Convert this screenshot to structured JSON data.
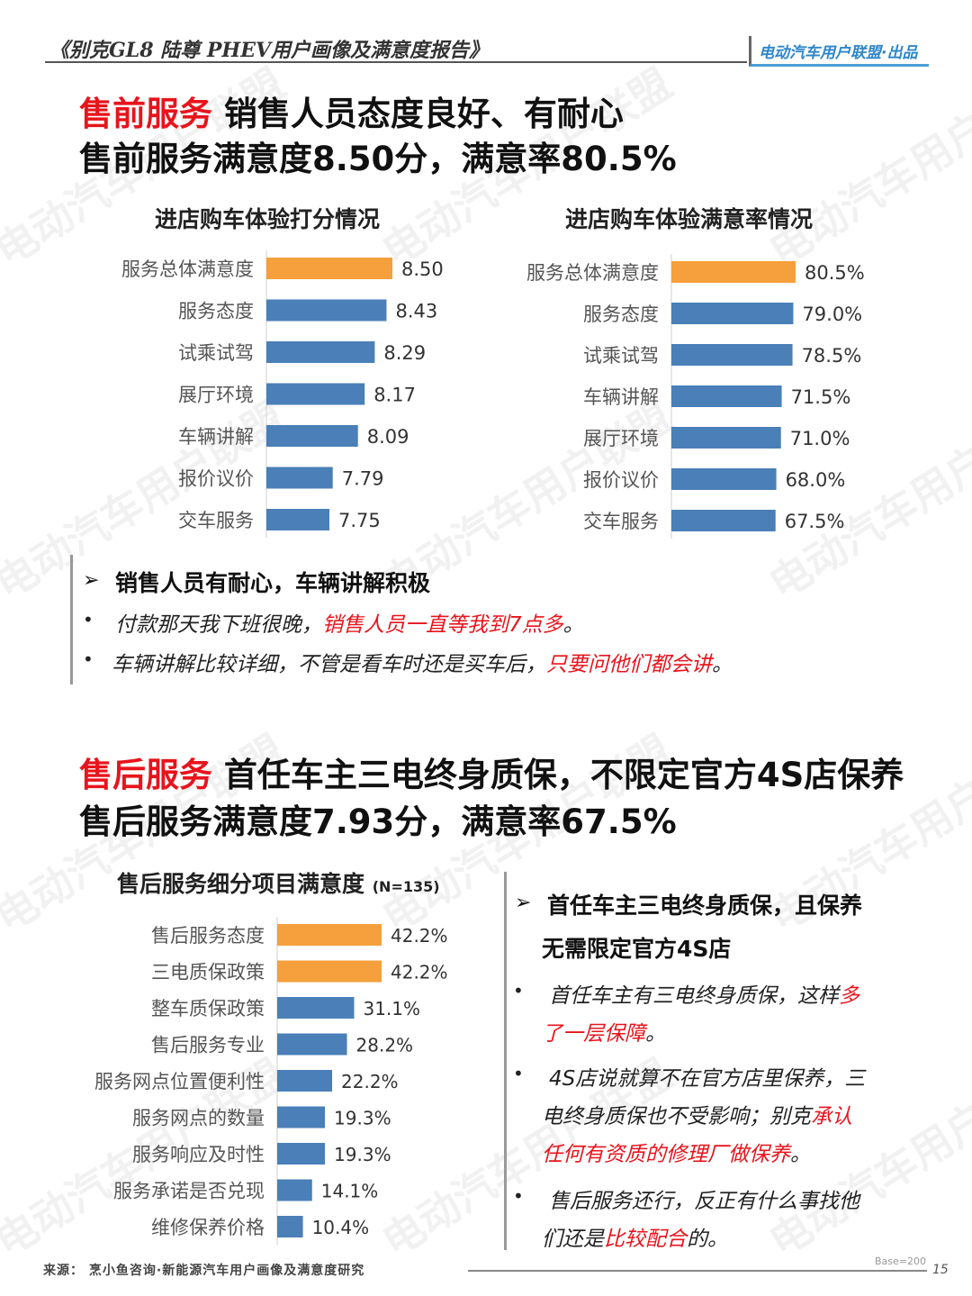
{
  "header": {
    "title": "《别克GL8 陆尊 PHEV用户画像及满意度报告》",
    "brand": "电动汽车用户联盟·出品"
  },
  "watermark_text": "电动汽车用户联盟",
  "presale": {
    "headline1_red": "售前服务",
    "headline1_rest": " 销售人员态度良好、有耐心",
    "headline2": "售前服务满意度8.50分，满意率80.5%"
  },
  "aftersale": {
    "headline1_red": "售后服务",
    "headline1_rest": " 首任车主三电终身质保，不限定官方4S店保养",
    "headline2": "售后服务满意度7.93分，满意率67.5%"
  },
  "colors": {
    "highlight": "#f5a03c",
    "bar": "#4a7fb8",
    "accent_red": "#e8141c"
  },
  "chart_data": [
    {
      "type": "bar",
      "orientation": "horizontal",
      "title": "进店购车体验打分情况",
      "categories": [
        "服务总体满意度",
        "服务态度",
        "试乘试驾",
        "展厅环境",
        "车辆讲解",
        "报价议价",
        "交车服务"
      ],
      "values": [
        8.5,
        8.43,
        8.29,
        8.17,
        8.09,
        7.79,
        7.75
      ],
      "value_labels": [
        "8.50",
        "8.43",
        "8.29",
        "8.17",
        "8.09",
        "7.79",
        "7.75"
      ],
      "highlight_index": 0
    },
    {
      "type": "bar",
      "orientation": "horizontal",
      "title": "进店购车体验满意率情况",
      "categories": [
        "服务总体满意度",
        "服务态度",
        "试乘试驾",
        "车辆讲解",
        "展厅环境",
        "报价议价",
        "交车服务"
      ],
      "values": [
        80.5,
        79.0,
        78.5,
        71.5,
        71.0,
        68.0,
        67.5
      ],
      "value_labels": [
        "80.5%",
        "79.0%",
        "78.5%",
        "71.5%",
        "71.0%",
        "68.0%",
        "67.5%"
      ],
      "highlight_index": 0
    },
    {
      "type": "bar",
      "orientation": "horizontal",
      "title": "售后服务细分项目满意度",
      "note": "(N=135)",
      "categories": [
        "售后服务态度",
        "三电质保政策",
        "整车质保政策",
        "售后服务专业",
        "服务网点位置便利性",
        "服务网点的数量",
        "服务响应及时性",
        "服务承诺是否兑现",
        "维修保养价格"
      ],
      "values": [
        42.2,
        42.2,
        31.1,
        28.2,
        22.2,
        19.3,
        19.3,
        14.1,
        10.4
      ],
      "value_labels": [
        "42.2%",
        "42.2%",
        "31.1%",
        "28.2%",
        "22.2%",
        "19.3%",
        "19.3%",
        "14.1%",
        "10.4%"
      ],
      "highlight_count": 2
    }
  ],
  "presale_quotes": {
    "heading": "销售人员有耐心，车辆讲解积极",
    "q1_a": "付款那天我下班很晚，",
    "q1_b": "销售人员一直等我到7点多",
    "q1_c": "。",
    "q2_a": "车辆讲解比较详细，不管是看车时还是买车后，",
    "q2_b": "只要问他们都会讲",
    "q2_c": "。"
  },
  "aftersale_quotes": {
    "heading_l1": "首任车主三电终身质保，且保养",
    "heading_l2": "无需限定官方4S店",
    "q1_l1_a": "首任车主有三电终身质保，这样",
    "q1_l1_b": "多",
    "q1_l2_b": "了一层保障",
    "q1_l2_c": "。",
    "q2_l1": "4S店说就算不在官方店里保养，三",
    "q2_l2_a": "电终身质保也不受影响；别克",
    "q2_l2_b": "承认",
    "q2_l3_b": "任何有资质的修理厂做保养",
    "q2_l3_c": "。",
    "q3_l1": "售后服务还行，反正有什么事找他",
    "q3_l2_a": "们还是",
    "q3_l2_b": "比较配合",
    "q3_l2_c": "的。"
  },
  "footer": {
    "source": "来源：  烹小鱼咨询·新能源汽车用户画像及满意度研究",
    "base": "Base=200",
    "page": "15"
  }
}
